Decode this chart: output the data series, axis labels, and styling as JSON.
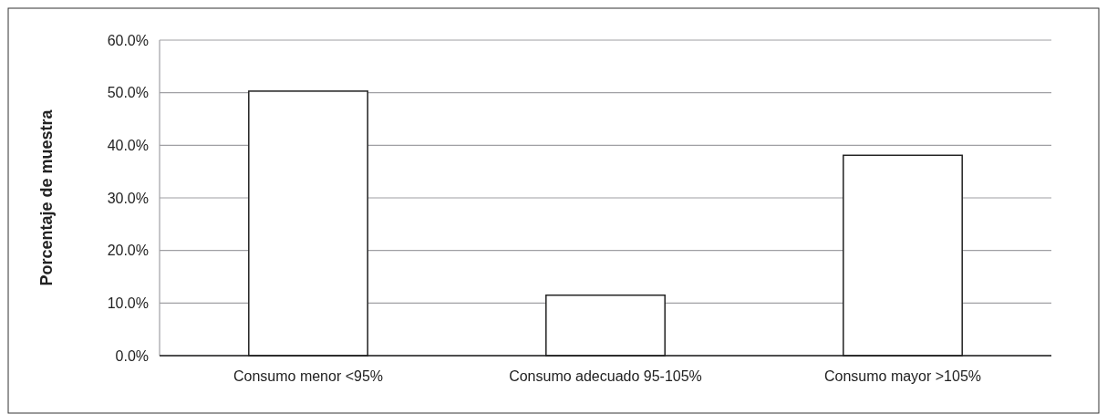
{
  "chart_data": {
    "type": "bar",
    "ylabel": "Porcentaje de muestra",
    "categories": [
      "Consumo menor <95%",
      "Consumo adecuado 95-105%",
      "Consumo mayor >105%"
    ],
    "values": [
      50.3,
      11.5,
      38.1
    ],
    "color": "#ffffff",
    "ylim": [
      0,
      60
    ],
    "yticks": [
      {
        "value": 0,
        "label": "0.0%"
      },
      {
        "value": 10,
        "label": "10.0%"
      },
      {
        "value": 20,
        "label": "20.0%"
      },
      {
        "value": 30,
        "label": "30.0%"
      },
      {
        "value": 40,
        "label": "40.0%"
      },
      {
        "value": 50,
        "label": "50.0%"
      },
      {
        "value": 60,
        "label": "60.0%"
      }
    ],
    "grid": "y"
  }
}
